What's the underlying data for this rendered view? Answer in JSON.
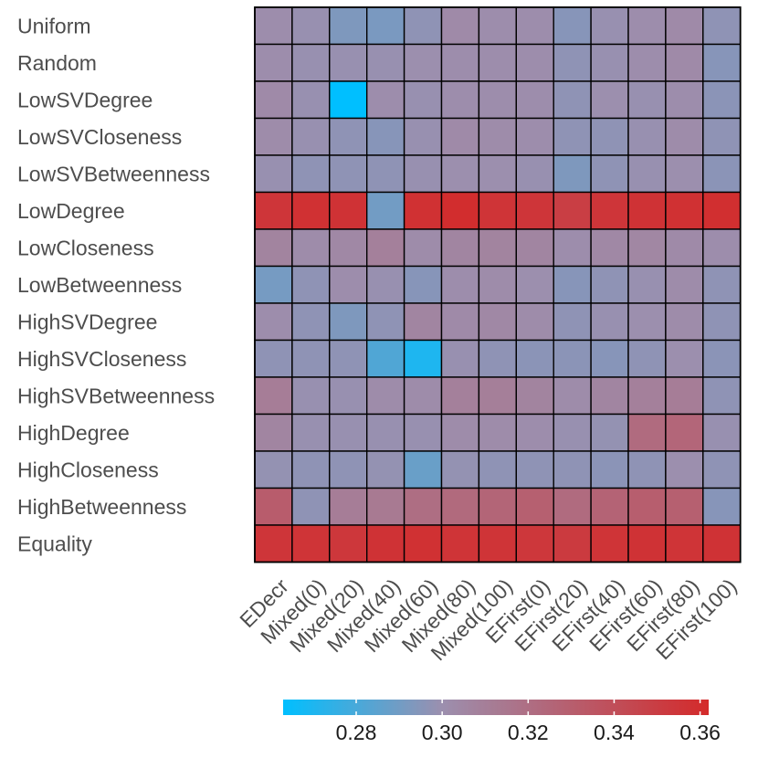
{
  "chart_data": {
    "type": "heatmap",
    "rows": [
      "Uniform",
      "Random",
      "LowSVDegree",
      "LowSVCloseness",
      "LowSVBetweenness",
      "LowDegree",
      "LowCloseness",
      "LowBetweenness",
      "HighSVDegree",
      "HighSVCloseness",
      "HighSVBetweenness",
      "HighDegree",
      "HighCloseness",
      "HighBetweenness",
      "Equality"
    ],
    "columns": [
      "EDecr",
      "Mixed(0)",
      "Mixed(20)",
      "Mixed(40)",
      "Mixed(60)",
      "Mixed(80)",
      "Mixed(100)",
      "EFirst(0)",
      "EFirst(20)",
      "EFirst(40)",
      "EFirst(60)",
      "EFirst(80)",
      "EFirst(100)"
    ],
    "values": [
      [
        0.301,
        0.299,
        0.293,
        0.292,
        0.297,
        0.303,
        0.301,
        0.301,
        0.295,
        0.299,
        0.301,
        0.303,
        0.297
      ],
      [
        0.301,
        0.299,
        0.299,
        0.299,
        0.3,
        0.301,
        0.301,
        0.301,
        0.297,
        0.299,
        0.301,
        0.303,
        0.295
      ],
      [
        0.303,
        0.299,
        0.263,
        0.301,
        0.299,
        0.301,
        0.301,
        0.301,
        0.297,
        0.3,
        0.299,
        0.301,
        0.296
      ],
      [
        0.302,
        0.299,
        0.297,
        0.295,
        0.299,
        0.303,
        0.302,
        0.301,
        0.297,
        0.297,
        0.299,
        0.302,
        0.297
      ],
      [
        0.299,
        0.297,
        0.297,
        0.297,
        0.299,
        0.3,
        0.3,
        0.299,
        0.293,
        0.297,
        0.299,
        0.3,
        0.296
      ],
      [
        0.355,
        0.358,
        0.357,
        0.29,
        0.358,
        0.36,
        0.356,
        0.355,
        0.35,
        0.355,
        0.357,
        0.358,
        0.359
      ],
      [
        0.307,
        0.302,
        0.304,
        0.309,
        0.302,
        0.306,
        0.307,
        0.306,
        0.301,
        0.304,
        0.305,
        0.303,
        0.301
      ],
      [
        0.291,
        0.297,
        0.301,
        0.299,
        0.295,
        0.301,
        0.302,
        0.3,
        0.295,
        0.297,
        0.299,
        0.302,
        0.297
      ],
      [
        0.301,
        0.297,
        0.293,
        0.297,
        0.306,
        0.303,
        0.304,
        0.302,
        0.297,
        0.299,
        0.3,
        0.302,
        0.297
      ],
      [
        0.297,
        0.297,
        0.297,
        0.282,
        0.27,
        0.299,
        0.297,
        0.296,
        0.296,
        0.295,
        0.297,
        0.3,
        0.296
      ],
      [
        0.311,
        0.299,
        0.299,
        0.302,
        0.302,
        0.309,
        0.31,
        0.307,
        0.302,
        0.306,
        0.309,
        0.311,
        0.297
      ],
      [
        0.306,
        0.299,
        0.299,
        0.299,
        0.299,
        0.302,
        0.302,
        0.301,
        0.299,
        0.298,
        0.322,
        0.325,
        0.299
      ],
      [
        0.298,
        0.297,
        0.297,
        0.298,
        0.288,
        0.298,
        0.297,
        0.297,
        0.297,
        0.296,
        0.297,
        0.3,
        0.297
      ],
      [
        0.331,
        0.297,
        0.311,
        0.313,
        0.32,
        0.323,
        0.326,
        0.329,
        0.322,
        0.327,
        0.33,
        0.329,
        0.295
      ],
      [
        0.355,
        0.356,
        0.354,
        0.357,
        0.358,
        0.356,
        0.356,
        0.354,
        0.352,
        0.356,
        0.357,
        0.356,
        0.357
      ]
    ],
    "colorbar": {
      "ticks": [
        "0.28",
        "0.30",
        "0.32",
        "0.34",
        "0.36"
      ],
      "tick_values": [
        0.28,
        0.3,
        0.32,
        0.34,
        0.36
      ],
      "range": [
        0.263,
        0.362
      ],
      "low_color": "#00bfff",
      "mid_color": "#9c8fae",
      "high_color": "#d42a2a",
      "mid_value": 0.3
    },
    "xlabel": "",
    "ylabel": "",
    "title": "",
    "legend_position": "bottom"
  }
}
